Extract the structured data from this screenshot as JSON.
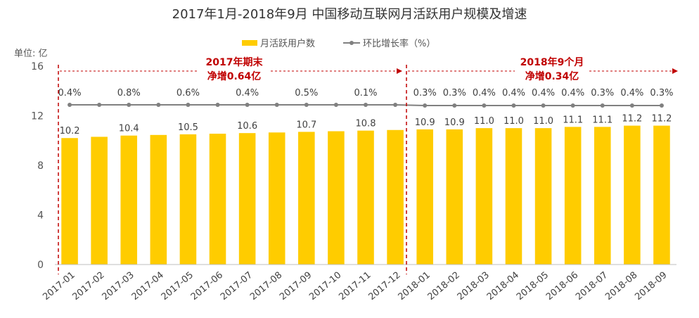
{
  "chart_data": {
    "type": "bar",
    "title": "2017年1月-2018年9月 中国移动互联网月活跃用户规模及增速",
    "unit_label": "单位: 亿",
    "categories": [
      "2017-01",
      "2017-02",
      "2017-03",
      "2017-04",
      "2017-05",
      "2017-06",
      "2017-07",
      "2017-08",
      "2017-09",
      "2017-10",
      "2017-11",
      "2017-12",
      "2018-01",
      "2018-02",
      "2018-03",
      "2018-04",
      "2018-05",
      "2018-06",
      "2018-07",
      "2018-08",
      "2018-09"
    ],
    "series": [
      {
        "name": "月活跃用户数",
        "kind": "bar",
        "color": "#FFCC00",
        "values": [
          10.2,
          10.3,
          10.4,
          10.45,
          10.5,
          10.55,
          10.6,
          10.65,
          10.7,
          10.75,
          10.8,
          10.85,
          10.9,
          10.9,
          11.0,
          11.0,
          11.0,
          11.1,
          11.1,
          11.2,
          11.2
        ],
        "labels": [
          "10.2",
          "",
          "10.4",
          "",
          "10.5",
          "",
          "10.6",
          "",
          "10.7",
          "",
          "10.8",
          "",
          "10.9",
          "10.9",
          "11.0",
          "11.0",
          "11.0",
          "11.1",
          "11.1",
          "11.2",
          "11.2"
        ]
      },
      {
        "name": "环比增长率（%）",
        "kind": "line",
        "color": "#808080",
        "labels": [
          "0.4%",
          "",
          "0.8%",
          "",
          "0.6%",
          "",
          "0.4%",
          "",
          "0.5%",
          "",
          "0.1%",
          "",
          "0.3%",
          "0.3%",
          "0.4%",
          "0.4%",
          "0.4%",
          "0.4%",
          "0.3%",
          "0.4%",
          "0.3%"
        ]
      }
    ],
    "y_ticks": [
      "0",
      "4",
      "8",
      "12",
      "16"
    ],
    "ylim": [
      0,
      16
    ],
    "annotations": [
      {
        "id": "2017",
        "lines": [
          "2017年期末",
          "净增0.64亿"
        ],
        "color": "#C00000"
      },
      {
        "id": "2018",
        "lines": [
          "2018年9个月",
          "净增0.34亿"
        ],
        "color": "#C00000"
      }
    ],
    "legend_position": "top-center",
    "grid": false
  }
}
